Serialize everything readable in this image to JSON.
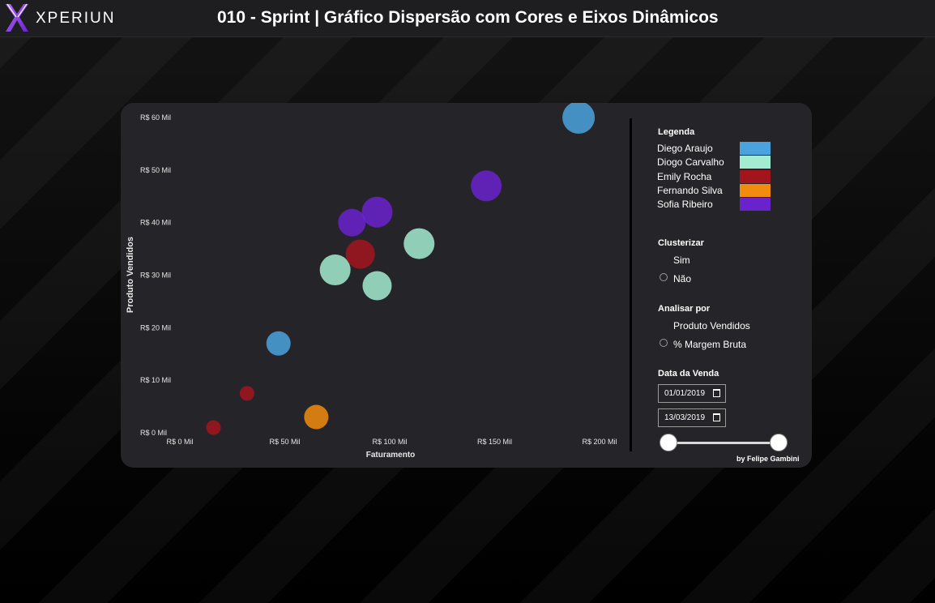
{
  "header": {
    "logo_text": "XPERIUN",
    "title": "010 - Sprint | Gráfico Dispersão com Cores e Eixos Dinâmicos"
  },
  "chart_data": {
    "type": "scatter",
    "xlabel": "Faturamento",
    "ylabel": "Produto Vendidos",
    "xlim": [
      0,
      210
    ],
    "ylim": [
      0,
      60
    ],
    "x_ticks": [
      "R$ 0 Mil",
      "R$ 50 Mil",
      "R$ 100 Mil",
      "R$ 150 Mil",
      "R$ 200 Mil"
    ],
    "y_ticks": [
      "R$ 0 Mil",
      "R$ 10 Mil",
      "R$ 20 Mil",
      "R$ 30 Mil",
      "R$ 40 Mil",
      "R$ 50 Mil",
      "R$ 60 Mil"
    ],
    "series": [
      {
        "name": "Diego Araujo",
        "color": "#4aa3de",
        "points": [
          {
            "x": 47,
            "y": 17,
            "size": 15
          },
          {
            "x": 190,
            "y": 60,
            "size": 20
          }
        ]
      },
      {
        "name": "Diogo Carvalho",
        "color": "#a3ecd1",
        "points": [
          {
            "x": 74,
            "y": 31,
            "size": 19
          },
          {
            "x": 94,
            "y": 28,
            "size": 18
          },
          {
            "x": 114,
            "y": 36,
            "size": 19
          }
        ]
      },
      {
        "name": "Emily Rocha",
        "color": "#a3141d",
        "points": [
          {
            "x": 16,
            "y": 1,
            "size": 9
          },
          {
            "x": 32,
            "y": 7.5,
            "size": 9
          },
          {
            "x": 86,
            "y": 34,
            "size": 18
          }
        ]
      },
      {
        "name": "Fernando Silva",
        "color": "#f28c0e",
        "points": [
          {
            "x": 65,
            "y": 3,
            "size": 15
          }
        ]
      },
      {
        "name": "Sofia Ribeiro",
        "color": "#6a22cc",
        "points": [
          {
            "x": 82,
            "y": 40,
            "size": 17
          },
          {
            "x": 94,
            "y": 42,
            "size": 19
          },
          {
            "x": 146,
            "y": 47,
            "size": 19
          }
        ]
      }
    ]
  },
  "sidebar": {
    "legend_title": "Legenda",
    "legend_items": [
      {
        "label": "Diego Araujo",
        "color": "#4aa3de"
      },
      {
        "label": "Diogo Carvalho",
        "color": "#a3ecd1"
      },
      {
        "label": "Emily Rocha",
        "color": "#a3141d"
      },
      {
        "label": "Fernando Silva",
        "color": "#f28c0e"
      },
      {
        "label": "Sofia Ribeiro",
        "color": "#6a22cc"
      }
    ],
    "cluster_title": "Clusterizar",
    "cluster_options": [
      "Sim",
      "Não"
    ],
    "analyze_title": "Analisar por",
    "analyze_options": [
      "Produto Vendidos",
      "% Margem Bruta"
    ],
    "date_title": "Data da Venda",
    "date_start": "01/01/2019",
    "date_end": "13/03/2019",
    "date_slider_range": [
      0,
      1
    ]
  },
  "footer": {
    "credit": "by Felipe Gambini"
  }
}
